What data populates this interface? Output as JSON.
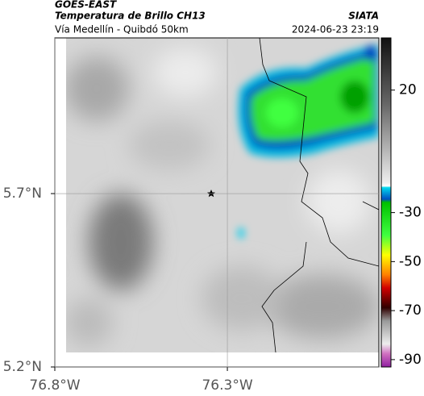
{
  "header": {
    "product": "GOES-EAST",
    "title": "Temperatura de Brillo CH13",
    "source": "SIATA",
    "subtitle": "Vía Medellín - Quibdó 50km",
    "timestamp": "2024-06-23 23:19"
  },
  "map": {
    "xlim": [
      -76.8,
      -75.861
    ],
    "ylim": [
      5.2,
      6.149
    ],
    "xticks": [
      {
        "value": -76.8,
        "label": "76.8°W"
      },
      {
        "value": -76.3,
        "label": "76.3°W"
      }
    ],
    "yticks": [
      {
        "value": 5.7,
        "label": "5.7°N"
      },
      {
        "value": 5.2,
        "label": "5.2°N"
      }
    ],
    "grid": true
  },
  "colorbar": {
    "lim": [
      41.3,
      -93
    ],
    "ticks": [
      20,
      -30,
      -50,
      -70,
      -90
    ]
  }
}
